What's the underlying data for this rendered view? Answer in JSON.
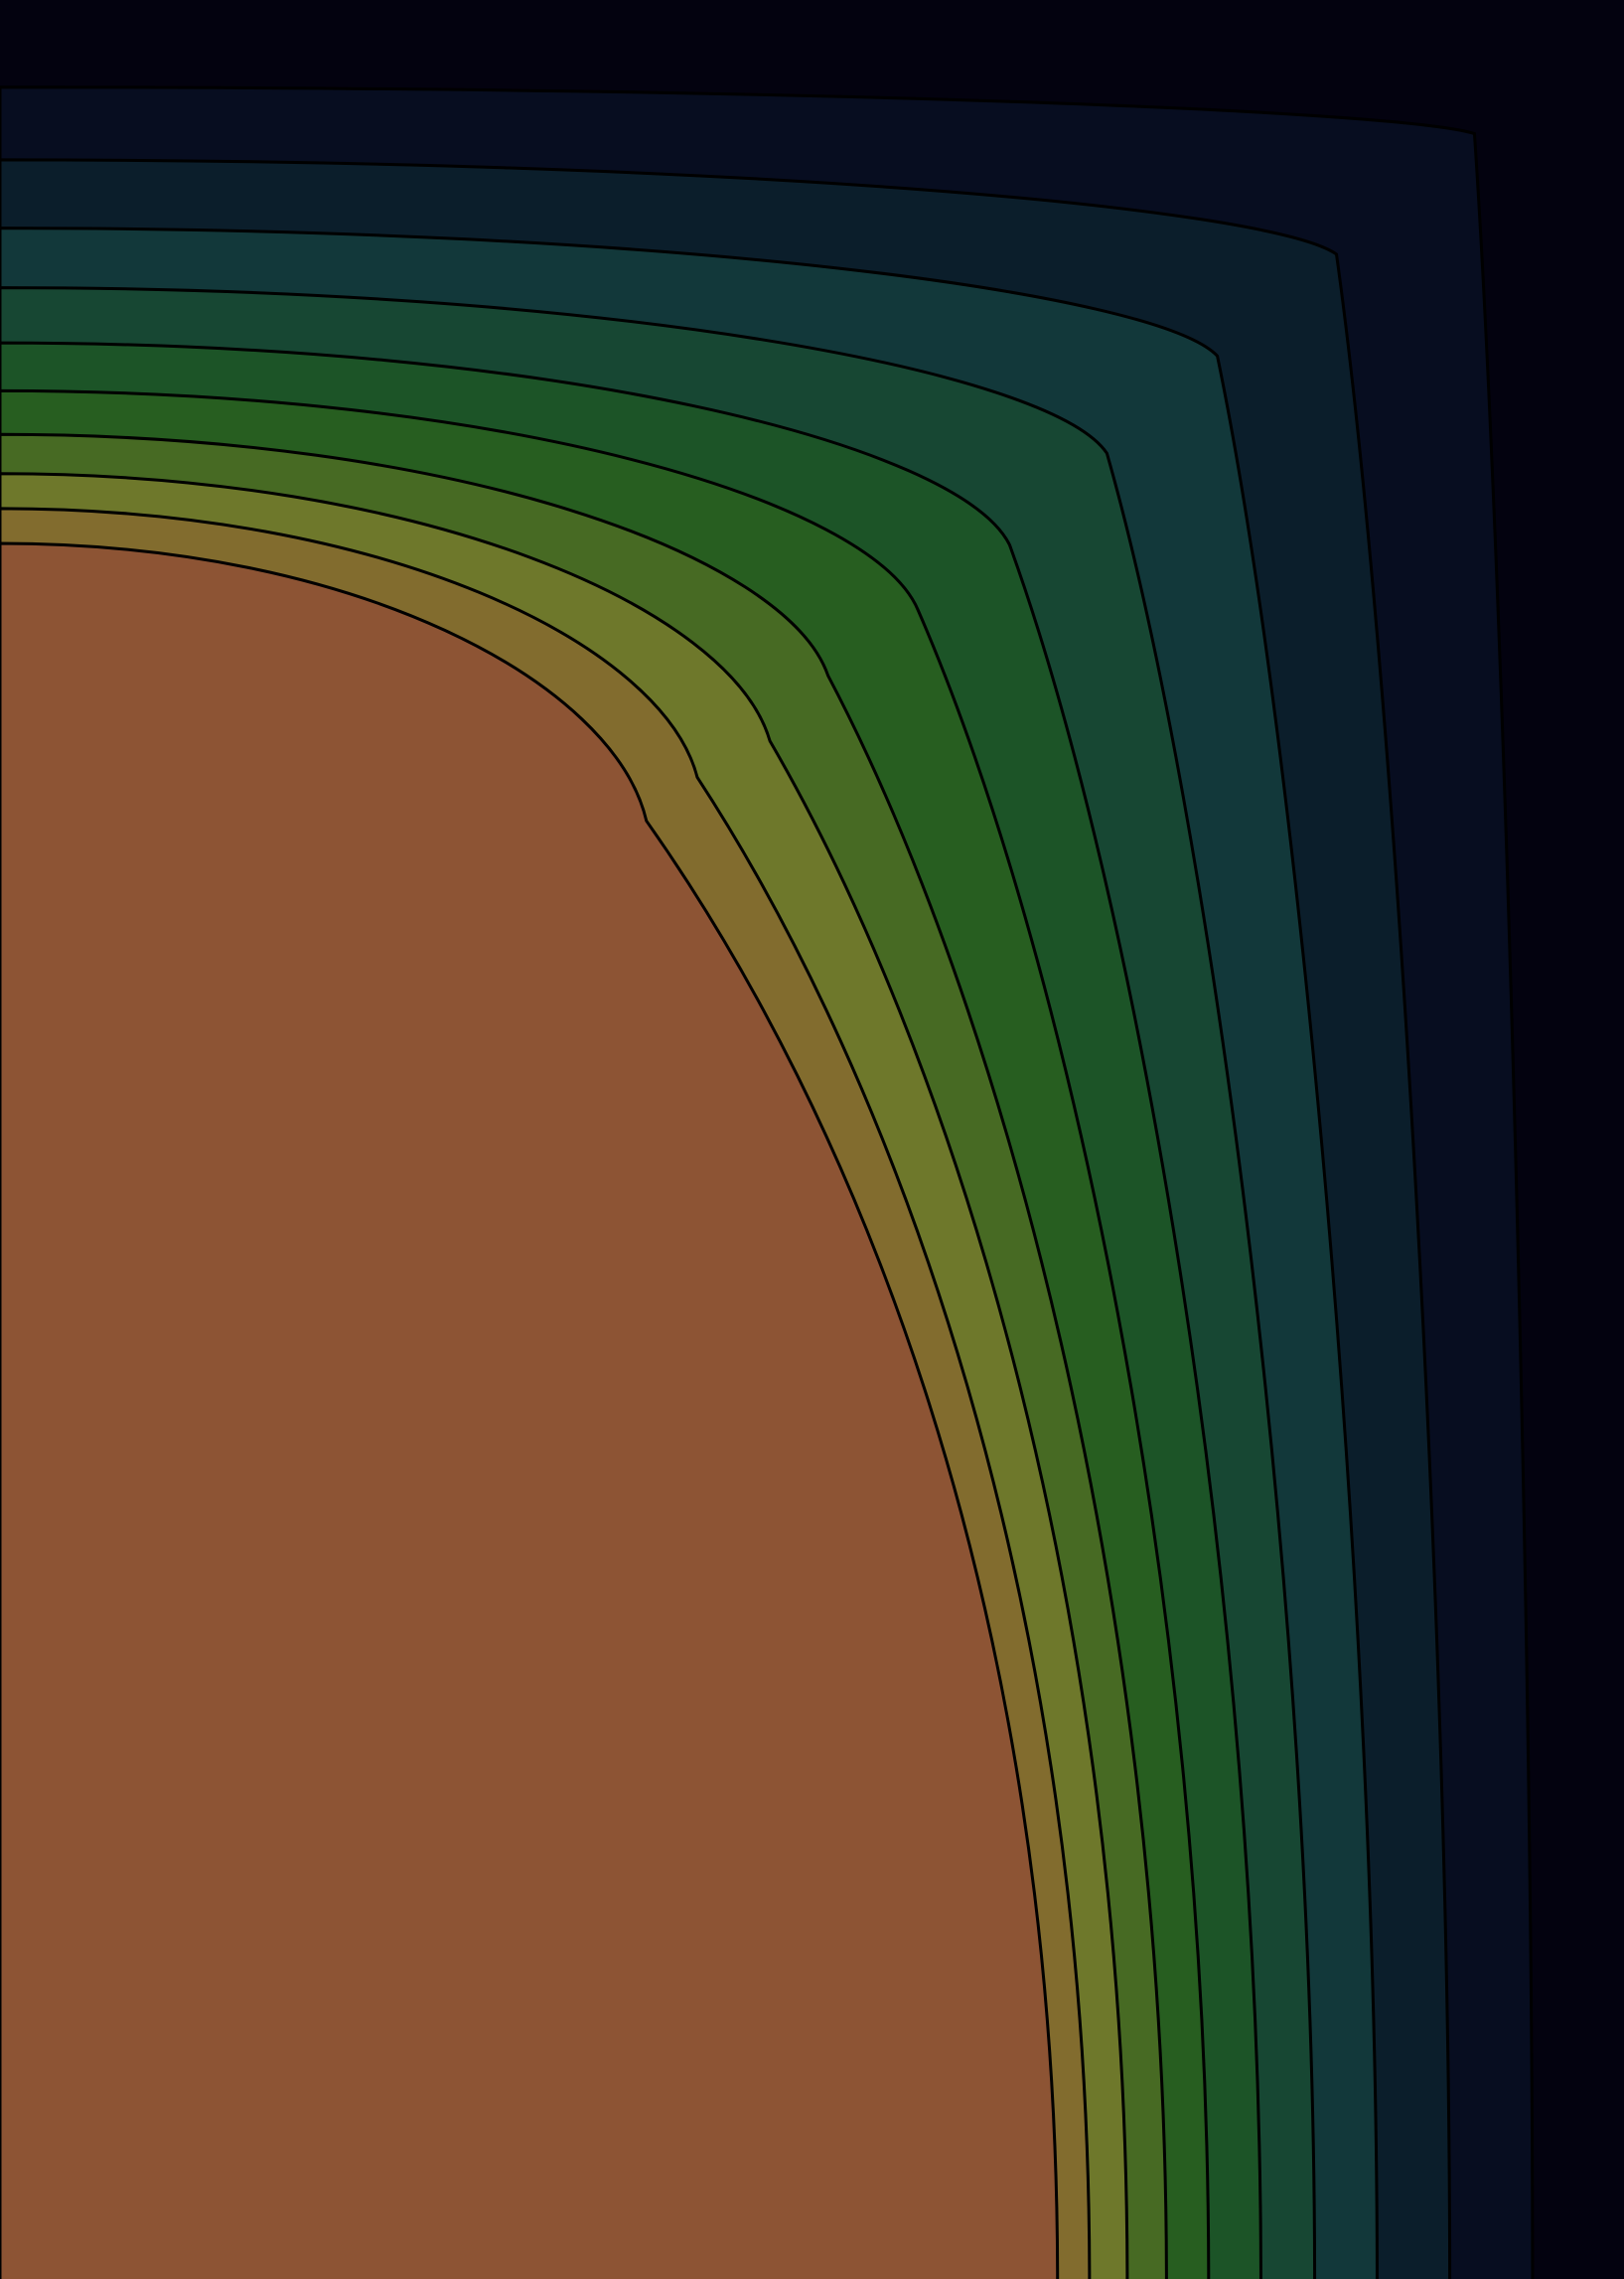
{
  "background": "#03020f",
  "bands": [
    {
      "color": "#070d20"
    },
    {
      "color": "#0b1e2b"
    },
    {
      "color": "#12383a"
    },
    {
      "color": "#174733"
    },
    {
      "color": "#1c5427"
    },
    {
      "color": "#275e20"
    },
    {
      "color": "#476a23"
    },
    {
      "color": "#6e782b"
    },
    {
      "color": "#826c2e"
    },
    {
      "color": "#8d5434"
    }
  ]
}
